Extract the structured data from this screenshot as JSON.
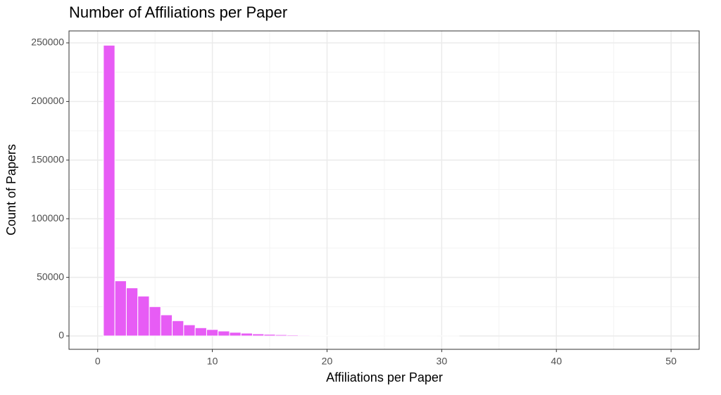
{
  "chart_data": {
    "type": "histogram",
    "title": "Number of Affiliations per Paper",
    "x_label": "Affiliations per Paper",
    "y_label": "Count of Papers",
    "bins": [
      0.5,
      1.5,
      2.5,
      3.5,
      4.5,
      5.5,
      6.5,
      7.5,
      8.5,
      9.5,
      10.5,
      11.5,
      12.5,
      13.5,
      14.5,
      15.5,
      16.5,
      17.5,
      18.5,
      19.5,
      20.5,
      21.5,
      22.5,
      23.5,
      24.5,
      25.5,
      26.5,
      27.5,
      28.5,
      29.5,
      30.5,
      31.5
    ],
    "counts": [
      248000,
      47000,
      41000,
      34000,
      25000,
      18000,
      13000,
      9500,
      7000,
      5500,
      4200,
      3100,
      2400,
      1800,
      1400,
      1100,
      850,
      650,
      500,
      400,
      300,
      250,
      200,
      160,
      130,
      100,
      80,
      65,
      50,
      40,
      30
    ],
    "color": "#e75cf5",
    "xlim": [
      -2.5,
      52.45
    ],
    "xticks": [
      0,
      10,
      20,
      30,
      40,
      50
    ],
    "ylim": [
      -11400,
      260200
    ],
    "yticks": [
      0,
      50000,
      100000,
      150000,
      200000,
      250000
    ],
    "grid": true
  }
}
